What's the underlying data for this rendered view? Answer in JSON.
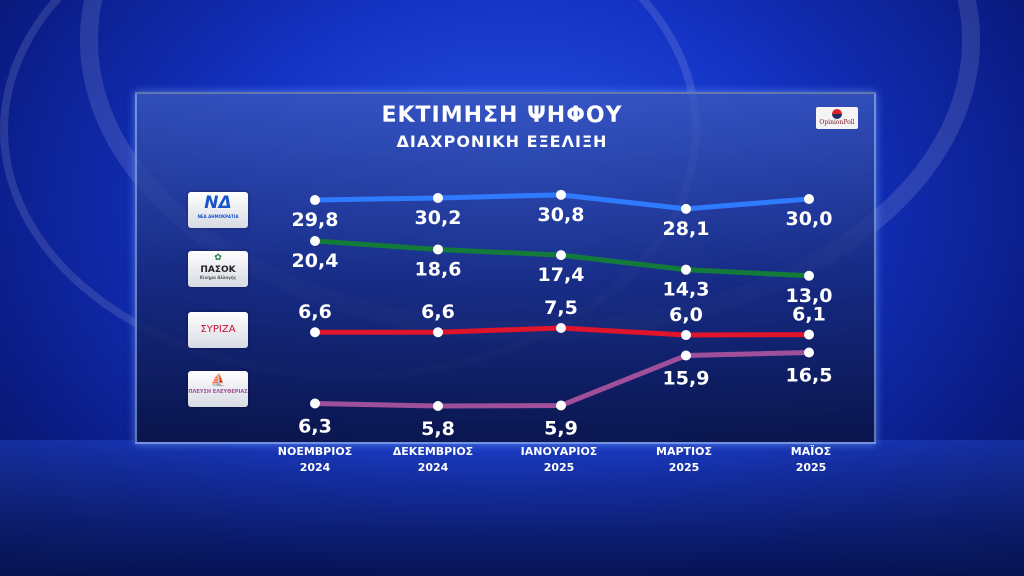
{
  "header": {
    "title": "ΕΚΤΙΜΗΣΗ ΨΗΦΟΥ",
    "subtitle": "ΔΙΑΧΡΟΝΙΚΗ ΕΞΕΛΙΞΗ",
    "brand": "OpinionPoll"
  },
  "parties": [
    {
      "logo_text": "ΝΔ",
      "logo_sub": "ΝΕΑ ΔΗΜΟΚΡΑΤΙΑ",
      "color": "#2f7bff"
    },
    {
      "logo_text": "ΠΑΣΟΚ",
      "logo_sub": "Κίνημα Αλλαγής",
      "color": "#137a3a"
    },
    {
      "logo_text": "ΣΥΡΙΖΑ",
      "logo_sub": "",
      "color": "#e0142a"
    },
    {
      "logo_text": "ΠΛΕΥΣΗ ΕΛΕΥΘΕΡΙΑΣ",
      "logo_sub": "",
      "color": "#a0509a"
    }
  ],
  "chart_data": {
    "type": "line",
    "title": "ΕΚΤΙΜΗΣΗ ΨΗΦΟΥ",
    "subtitle": "ΔΙΑΧΡΟΝΙΚΗ ΕΞΕΛΙΞΗ",
    "categories": [
      {
        "month": "ΝΟΕΜΒΡΙΟΣ",
        "year": "2024"
      },
      {
        "month": "ΔΕΚΕΜΒΡΙΟΣ",
        "year": "2024"
      },
      {
        "month": "ΙΑΝΟΥΑΡΙΟΣ",
        "year": "2025"
      },
      {
        "month": "ΜΑΡΤΙΟΣ",
        "year": "2025"
      },
      {
        "month": "ΜΑΪΟΣ",
        "year": "2025"
      }
    ],
    "series": [
      {
        "values": [
          29.8,
          30.2,
          30.8,
          28.1,
          30.0
        ],
        "labels": [
          "29,8",
          "30,2",
          "30,8",
          "28,1",
          "30,0"
        ],
        "color": "#2f7bff"
      },
      {
        "values": [
          20.4,
          18.6,
          17.4,
          14.3,
          13.0
        ],
        "labels": [
          "20,4",
          "18,6",
          "17,4",
          "14,3",
          "13,0"
        ],
        "color": "#137a3a"
      },
      {
        "values": [
          6.6,
          6.6,
          7.5,
          6.0,
          6.1
        ],
        "labels": [
          "6,6",
          "6,6",
          "7,5",
          "6,0",
          "6,1"
        ],
        "color": "#e0142a"
      },
      {
        "values": [
          6.3,
          5.8,
          5.9,
          15.9,
          16.5
        ],
        "labels": [
          "6,3",
          "5,8",
          "5,9",
          "15,9",
          "16,5"
        ],
        "color": "#a0509a"
      }
    ],
    "legend": "left (party logos)",
    "grid": false
  }
}
